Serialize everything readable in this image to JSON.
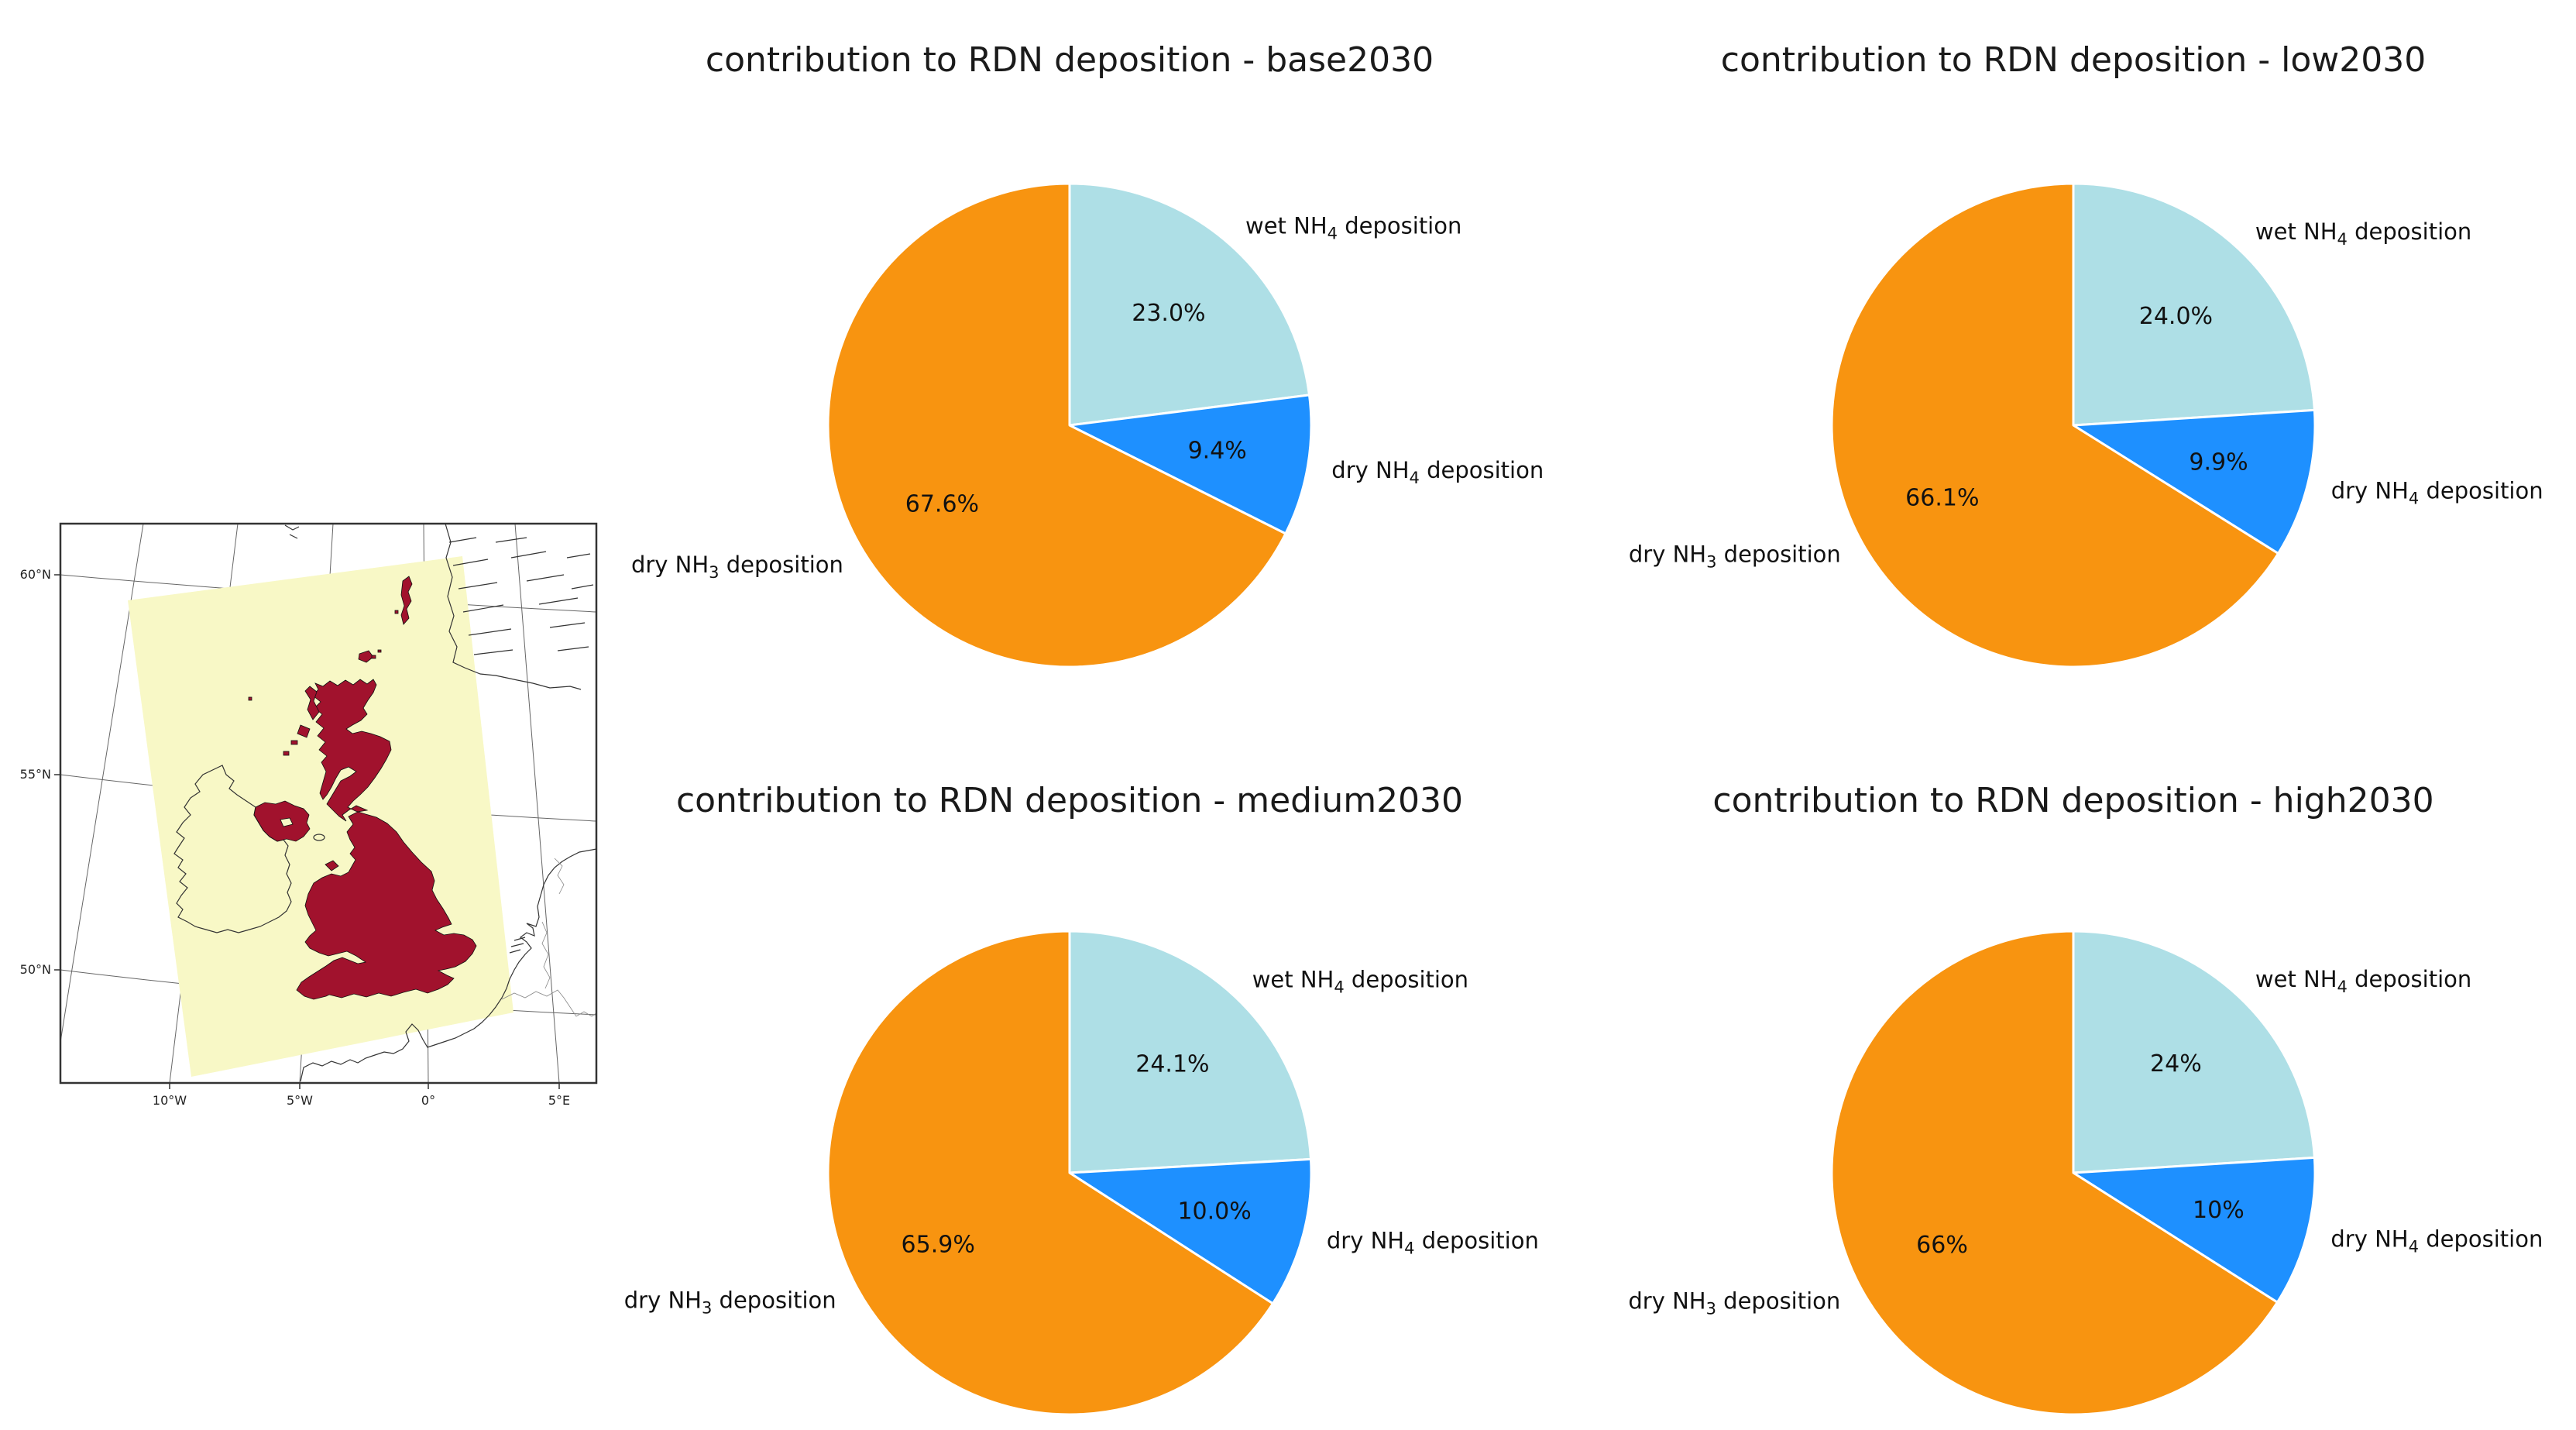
{
  "page": {
    "background": "#FFFFFF"
  },
  "map": {
    "lat_labels": [
      "60°N",
      "55°N",
      "50°N"
    ],
    "lon_labels": [
      "10°W",
      "5°W",
      "0°",
      "5°E"
    ],
    "colors": {
      "domain_fill": "#F8F8C6",
      "land_fill": "#A1122D",
      "coast_line": "#333333",
      "graticule": "#666666",
      "border_line": "#888888",
      "frame": "#333333"
    }
  },
  "chart_data": [
    {
      "type": "pie",
      "title": "contribution to RDN deposition - base2030",
      "start_angle": 90,
      "direction": "clockwise",
      "radius_px": 312,
      "slices": [
        {
          "label_pre": "wet NH",
          "label_sub": "4",
          "label_post": " deposition",
          "value": 23.0,
          "pct_label": "23.0%",
          "color": "#AEDFE6"
        },
        {
          "label_pre": "dry NH",
          "label_sub": "4",
          "label_post": " deposition",
          "value": 9.4,
          "pct_label": "9.4%",
          "color": "#1E90FF"
        },
        {
          "label_pre": "dry NH",
          "label_sub": "3",
          "label_post": " deposition",
          "value": 67.6,
          "pct_label": "67.6%",
          "color": "#F89410"
        }
      ]
    },
    {
      "type": "pie",
      "title": "contribution to RDN deposition - low2030",
      "start_angle": 90,
      "direction": "clockwise",
      "radius_px": 312,
      "slices": [
        {
          "label_pre": "wet NH",
          "label_sub": "4",
          "label_post": " deposition",
          "value": 24.0,
          "pct_label": "24.0%",
          "color": "#AEDFE6"
        },
        {
          "label_pre": "dry NH",
          "label_sub": "4",
          "label_post": " deposition",
          "value": 9.9,
          "pct_label": "9.9%",
          "color": "#1E90FF"
        },
        {
          "label_pre": "dry NH",
          "label_sub": "3",
          "label_post": " deposition",
          "value": 66.1,
          "pct_label": "66.1%",
          "color": "#F89410"
        }
      ]
    },
    {
      "type": "pie",
      "title": "contribution to RDN deposition - medium2030",
      "start_angle": 90,
      "direction": "clockwise",
      "radius_px": 312,
      "slices": [
        {
          "label_pre": "wet NH",
          "label_sub": "4",
          "label_post": " deposition",
          "value": 24.1,
          "pct_label": "24.1%",
          "color": "#AEDFE6"
        },
        {
          "label_pre": "dry NH",
          "label_sub": "4",
          "label_post": " deposition",
          "value": 10.0,
          "pct_label": "10.0%",
          "color": "#1E90FF"
        },
        {
          "label_pre": "dry NH",
          "label_sub": "3",
          "label_post": " deposition",
          "value": 65.9,
          "pct_label": "65.9%",
          "color": "#F89410"
        }
      ]
    },
    {
      "type": "pie",
      "title": "contribution to RDN deposition - high2030",
      "start_angle": 90,
      "direction": "clockwise",
      "radius_px": 312,
      "slices": [
        {
          "label_pre": "wet NH",
          "label_sub": "4",
          "label_post": " deposition",
          "value": 24,
          "pct_label": "24%",
          "color": "#AEDFE6"
        },
        {
          "label_pre": "dry NH",
          "label_sub": "4",
          "label_post": " deposition",
          "value": 10,
          "pct_label": "10%",
          "color": "#1E90FF"
        },
        {
          "label_pre": "dry NH",
          "label_sub": "3",
          "label_post": " deposition",
          "value": 66,
          "pct_label": "66%",
          "color": "#F89410"
        }
      ]
    }
  ]
}
